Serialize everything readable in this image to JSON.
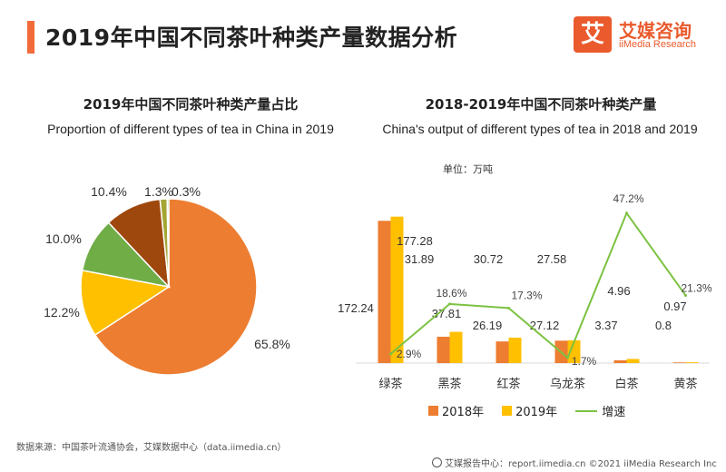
{
  "header": {
    "title": "2019年中国不同茶叶种类产量数据分析"
  },
  "brand": {
    "logo_char": "艾",
    "name_cn": "艾媒咨询",
    "name_en": "iiMedia Research",
    "color": "#ea5a2c"
  },
  "pie_chart": {
    "title_cn": "2019年中国不同茶叶种类产量占比",
    "title_en": "Proportion of different types of tea in China in 2019"
  },
  "combo_chart": {
    "title_cn": "2018-2019年中国不同茶叶种类产量",
    "title_en": "China's output of different types of tea in 2018 and 2019",
    "unit_label": "单位：万吨"
  },
  "legend": {
    "s2018": "2018年",
    "s2019": "2019年",
    "growth": "增速"
  },
  "source_text": "数据来源：中国茶叶流通协会，艾媒数据中心（data.iimedia.cn）",
  "footer_text": "艾媒报告中心：report.iimedia.cn ©2021 iiMedia Research Inc",
  "colors": {
    "orange": "#ed7d31",
    "yellow": "#ffc000",
    "green": "#70ad47",
    "brown": "#9e480e",
    "olive": "#a5a535",
    "lightgreen": "#7cc242",
    "accent": "#f26b3a"
  },
  "chart_data": [
    {
      "type": "pie",
      "slices": [
        {
          "label": "65.8%",
          "value": 65.8,
          "color": "#ed7d31"
        },
        {
          "label": "12.2%",
          "value": 12.2,
          "color": "#ffc000"
        },
        {
          "label": "10.0%",
          "value": 10.0,
          "color": "#70ad47"
        },
        {
          "label": "10.4%",
          "value": 10.4,
          "color": "#9e480e"
        },
        {
          "label": "1.3%",
          "value": 1.3,
          "color": "#a5a535"
        },
        {
          "label": "0.3%",
          "value": 0.3,
          "color": "#7cc242"
        }
      ]
    },
    {
      "type": "bar",
      "categories": [
        "绿茶",
        "黑茶",
        "红茶",
        "乌龙茶",
        "白茶",
        "黄茶"
      ],
      "series": [
        {
          "name": "2018年",
          "values": [
            172.24,
            31.89,
            26.19,
            27.12,
            3.37,
            0.8
          ],
          "labels": [
            "172.24",
            "31.89",
            "26.19",
            "27.12",
            "3.37",
            "0.8"
          ],
          "color": "#ed7d31"
        },
        {
          "name": "2019年",
          "values": [
            177.28,
            37.81,
            30.72,
            27.58,
            4.96,
            0.97
          ],
          "labels": [
            "177.28",
            "37.81",
            "30.72",
            "27.58",
            "4.96",
            "0.97"
          ],
          "color": "#ffc000"
        }
      ],
      "line": {
        "name": "增速",
        "values": [
          2.9,
          18.6,
          17.3,
          1.7,
          47.2,
          21.3
        ],
        "labels": [
          "2.9%",
          "18.6%",
          "17.3%",
          "1.7%",
          "47.2%",
          "21.3%"
        ],
        "color": "#7cc242"
      },
      "ylim": [
        0,
        200
      ],
      "ylim_right": [
        0,
        52
      ]
    }
  ]
}
